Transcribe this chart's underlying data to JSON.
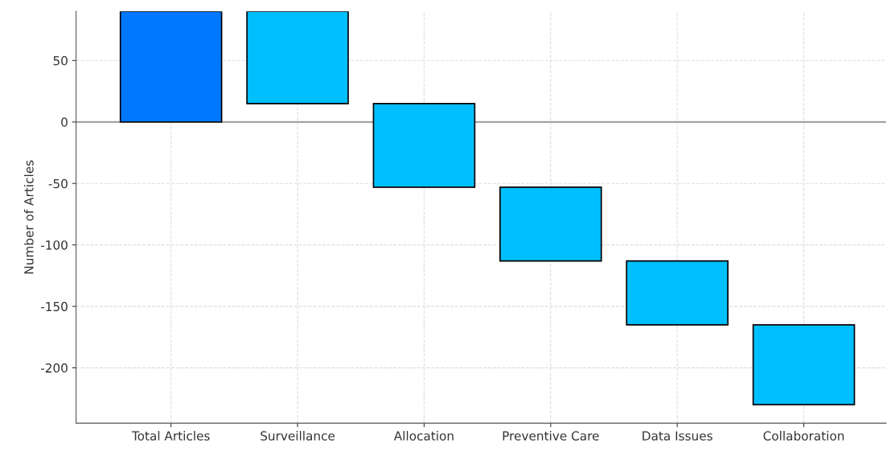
{
  "chart_data": {
    "type": "bar",
    "ylabel": "Number of Articles",
    "categories": [
      "Total Articles",
      "Surveillance",
      "Allocation",
      "Preventive Care",
      "Data Issues",
      "Collaboration"
    ],
    "values": [
      90,
      -75,
      -68,
      -60,
      -52,
      -65
    ],
    "base": [
      0,
      90,
      15,
      -53,
      -113,
      -165
    ],
    "colors": [
      "#0077ff",
      "#00bfff",
      "#00bfff",
      "#00bfff",
      "#00bfff",
      "#00bfff"
    ],
    "ylim": [
      -245,
      90
    ],
    "yticks": [
      -200,
      -150,
      -100,
      -50,
      0,
      50
    ],
    "ref_lines": [
      {
        "axis": "y",
        "value": 0,
        "color": "#999999"
      }
    ],
    "grid": true
  }
}
